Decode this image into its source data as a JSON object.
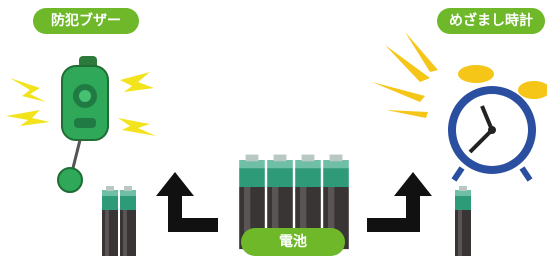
{
  "labels": {
    "buzzer": "防犯ブザー",
    "clock": "めざまし時計",
    "battery": "電池"
  }
}
